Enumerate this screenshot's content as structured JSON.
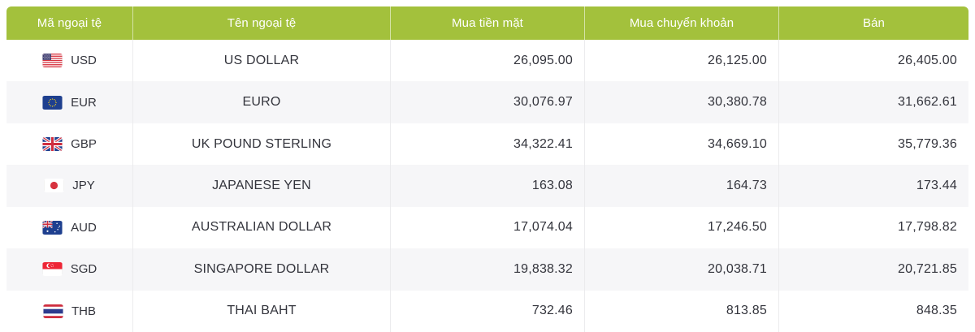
{
  "colors": {
    "header_bg": "#a3c13c",
    "header_text": "#ffffff",
    "row_alt_bg": "#f6f6f8",
    "body_text": "#33343c",
    "divider": "#ebebed"
  },
  "table": {
    "columns": [
      {
        "id": "code",
        "label": "Mã ngoại tệ"
      },
      {
        "id": "name",
        "label": "Tên ngoại tệ"
      },
      {
        "id": "cash_buy",
        "label": "Mua tiền mặt"
      },
      {
        "id": "transfer_buy",
        "label": "Mua chuyển khoản"
      },
      {
        "id": "sell",
        "label": "Bán"
      }
    ],
    "rows": [
      {
        "flag": "us",
        "code": "USD",
        "name": "US DOLLAR",
        "cash_buy": "26,095.00",
        "transfer_buy": "26,125.00",
        "sell": "26,405.00"
      },
      {
        "flag": "eu",
        "code": "EUR",
        "name": "EURO",
        "cash_buy": "30,076.97",
        "transfer_buy": "30,380.78",
        "sell": "31,662.61"
      },
      {
        "flag": "gb",
        "code": "GBP",
        "name": "UK POUND STERLING",
        "cash_buy": "34,322.41",
        "transfer_buy": "34,669.10",
        "sell": "35,779.36"
      },
      {
        "flag": "jp",
        "code": "JPY",
        "name": "JAPANESE YEN",
        "cash_buy": "163.08",
        "transfer_buy": "164.73",
        "sell": "173.44"
      },
      {
        "flag": "au",
        "code": "AUD",
        "name": "AUSTRALIAN DOLLAR",
        "cash_buy": "17,074.04",
        "transfer_buy": "17,246.50",
        "sell": "17,798.82"
      },
      {
        "flag": "sg",
        "code": "SGD",
        "name": "SINGAPORE DOLLAR",
        "cash_buy": "19,838.32",
        "transfer_buy": "20,038.71",
        "sell": "20,721.85"
      },
      {
        "flag": "th",
        "code": "THB",
        "name": "THAI BAHT",
        "cash_buy": "732.46",
        "transfer_buy": "813.85",
        "sell": "848.35"
      }
    ]
  }
}
